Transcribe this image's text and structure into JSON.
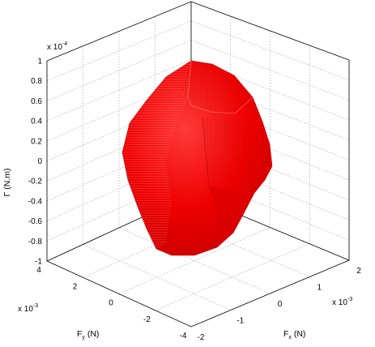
{
  "chart_data": {
    "type": "3d-surface",
    "title": "",
    "surface": {
      "description": "closed convex volume",
      "color": "#ff0000",
      "extent": {
        "Fx": [
          -0.0015,
          0.0015
        ],
        "Fy": [
          -0.003,
          0.003
        ],
        "Gamma": [
          -0.0001,
          0.0001
        ]
      }
    },
    "axes": {
      "x": {
        "label_main": "F",
        "label_sub": "x",
        "label_unit": " (N)",
        "range": [
          -2,
          2
        ],
        "ticks": [
          "-2",
          "-1",
          "0",
          "1",
          "2"
        ],
        "multiplier": "x 10",
        "multiplier_exp": "-3"
      },
      "y": {
        "label_main": "F",
        "label_sub": "y",
        "label_unit": " (N)",
        "range": [
          -4,
          4
        ],
        "ticks": [
          "-4",
          "-2",
          "0",
          "2",
          "4"
        ],
        "multiplier": "x 10",
        "multiplier_exp": "-3"
      },
      "z": {
        "label": "Γ (N.m)",
        "range": [
          -1,
          1
        ],
        "ticks": [
          "-1",
          "-0.8",
          "-0.6",
          "-0.4",
          "-0.2",
          "0",
          "0.2",
          "0.4",
          "0.6",
          "0.8",
          "1"
        ],
        "multiplier": "x 10",
        "multiplier_exp": "-4"
      }
    },
    "grid": true,
    "box": true
  }
}
